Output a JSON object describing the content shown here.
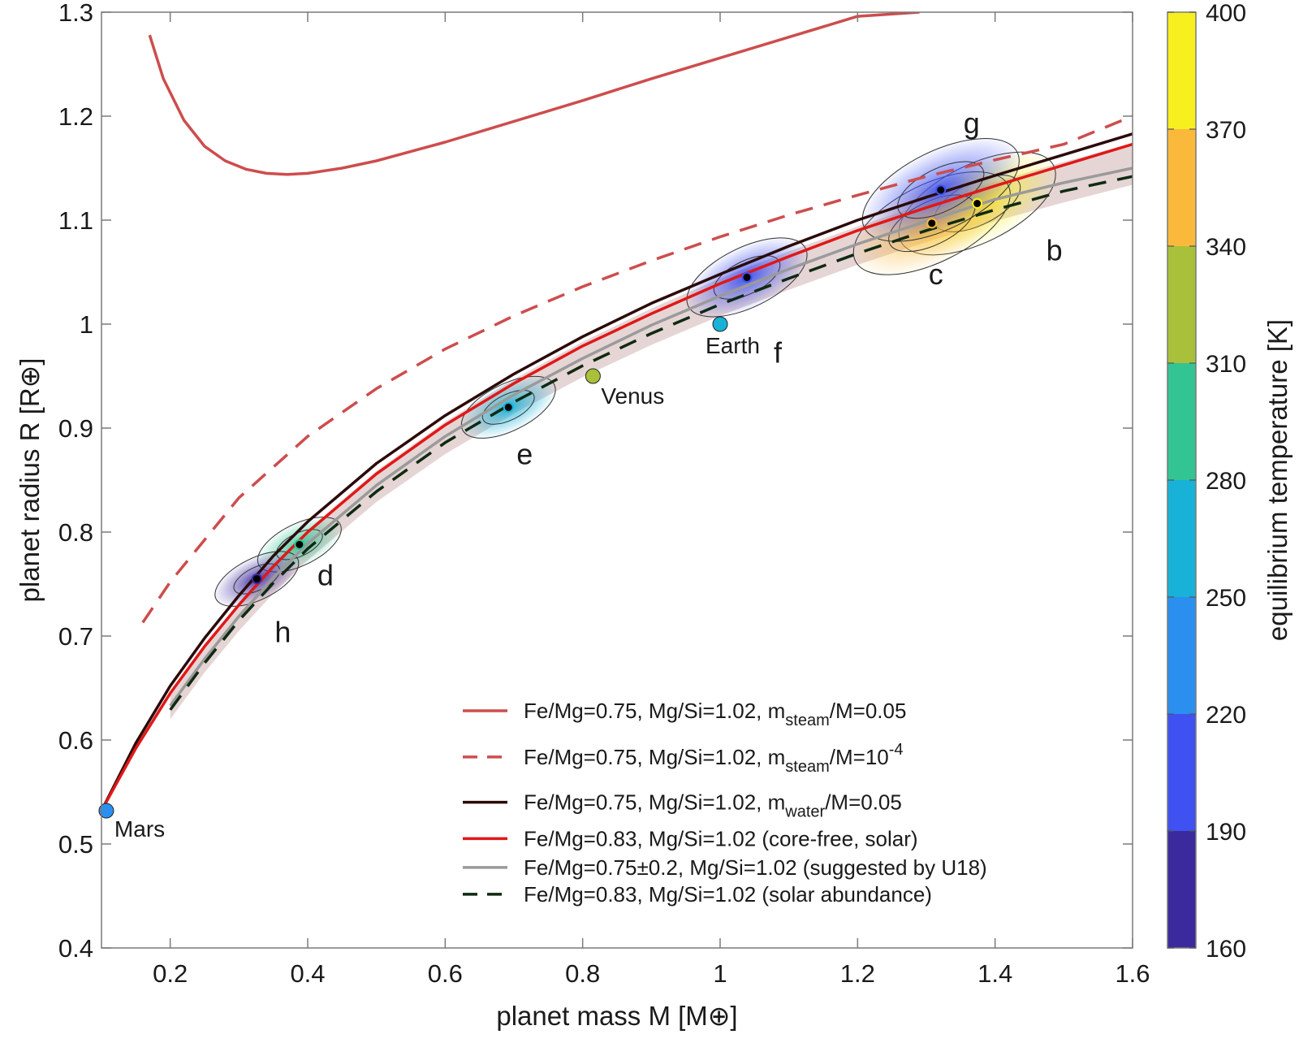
{
  "chart_data": {
    "type": "scatter",
    "xlabel": "planet mass M [M⊕]",
    "ylabel": "planet radius R [R⊕]",
    "xlim": [
      0.1,
      1.6
    ],
    "ylim": [
      0.4,
      1.3
    ],
    "x_ticks": [
      "0.2",
      "0.4",
      "0.6",
      "0.8",
      "1",
      "1.2",
      "1.4",
      "1.6"
    ],
    "y_ticks": [
      "0.4",
      "0.5",
      "0.6",
      "0.7",
      "0.8",
      "0.9",
      "1",
      "1.1",
      "1.2",
      "1.3"
    ],
    "grid": false,
    "legend_position": "bottom-right",
    "colorbar": {
      "label": "equilibrium temperature [K]",
      "ticks": [
        "160",
        "190",
        "220",
        "250",
        "280",
        "310",
        "340",
        "370",
        "400"
      ],
      "colors": [
        "#3b2a9e",
        "#3f51f0",
        "#2b8ff0",
        "#18b2d8",
        "#33c494",
        "#a9c13a",
        "#fbb93c",
        "#f7f01e"
      ]
    },
    "series": [
      {
        "name": "Fe/Mg=0.75, Mg/Si=1.02, m_steam/M=0.05",
        "legend": {
          "main": "Fe/Mg=0.75, Mg/Si=1.02, m",
          "sub": "steam",
          "rest": "/M=0.05"
        },
        "color": "#cd4d4d",
        "style": "solid",
        "x": [
          0.17,
          0.19,
          0.22,
          0.25,
          0.28,
          0.31,
          0.34,
          0.37,
          0.4,
          0.45,
          0.5,
          0.6,
          0.7,
          0.8,
          0.9,
          1.0,
          1.1,
          1.2,
          1.29
        ],
        "y": [
          1.278,
          1.236,
          1.196,
          1.171,
          1.157,
          1.149,
          1.145,
          1.144,
          1.145,
          1.15,
          1.157,
          1.175,
          1.195,
          1.215,
          1.236,
          1.256,
          1.276,
          1.296,
          1.3
        ]
      },
      {
        "name": "Fe/Mg=0.75, Mg/Si=1.02, m_steam/M=10^-4",
        "legend": {
          "main": "Fe/Mg=0.75, Mg/Si=1.02, m",
          "sub": "steam",
          "rest": "/M=10",
          "sup": "-4"
        },
        "color": "#cd4d4d",
        "style": "dashed",
        "x": [
          0.16,
          0.2,
          0.3,
          0.4,
          0.5,
          0.6,
          0.7,
          0.8,
          0.9,
          1.0,
          1.1,
          1.2,
          1.3,
          1.4,
          1.5,
          1.6
        ],
        "y": [
          0.713,
          0.752,
          0.833,
          0.892,
          0.938,
          0.976,
          1.008,
          1.036,
          1.061,
          1.084,
          1.105,
          1.124,
          1.142,
          1.158,
          1.173,
          1.2
        ]
      },
      {
        "name": "Fe/Mg=0.75, Mg/Si=1.02, m_water/M=0.05",
        "legend": {
          "main": "Fe/Mg=0.75, Mg/Si=1.02, m",
          "sub": "water",
          "rest": "/M=0.05"
        },
        "color": "#2b0a0a",
        "style": "solid",
        "x": [
          0.1,
          0.15,
          0.2,
          0.25,
          0.3,
          0.35,
          0.4,
          0.5,
          0.6,
          0.7,
          0.8,
          0.9,
          1.0,
          1.1,
          1.2,
          1.3,
          1.4,
          1.5,
          1.6
        ],
        "y": [
          0.532,
          0.597,
          0.652,
          0.698,
          0.739,
          0.777,
          0.81,
          0.866,
          0.912,
          0.952,
          0.988,
          1.02,
          1.048,
          1.075,
          1.1,
          1.122,
          1.143,
          1.163,
          1.183
        ]
      },
      {
        "name": "Fe/Mg=0.83, Mg/Si=1.02 (core-free, solar)",
        "legend": {
          "main": "Fe/Mg=0.83, Mg/Si=1.02 (core-free, solar)"
        },
        "color": "#e01818",
        "style": "solid",
        "x": [
          0.1,
          0.15,
          0.2,
          0.25,
          0.3,
          0.35,
          0.4,
          0.5,
          0.6,
          0.7,
          0.8,
          0.9,
          1.0,
          1.1,
          1.2,
          1.3,
          1.4,
          1.5,
          1.6
        ],
        "y": [
          0.532,
          0.592,
          0.645,
          0.69,
          0.73,
          0.767,
          0.8,
          0.856,
          0.903,
          0.943,
          0.979,
          1.01,
          1.039,
          1.065,
          1.09,
          1.112,
          1.133,
          1.153,
          1.173
        ]
      },
      {
        "name": "Fe/Mg=0.75±0.2, Mg/Si=1.02 (suggested by U18)",
        "legend": {
          "main": "Fe/Mg=0.75±0.2, Mg/Si=1.02 (suggested by U18)"
        },
        "color": "#9a9a9a",
        "style": "solid",
        "band_color": "#c49a9a",
        "x": [
          0.2,
          0.25,
          0.3,
          0.35,
          0.4,
          0.5,
          0.6,
          0.7,
          0.8,
          0.9,
          1.0,
          1.1,
          1.2,
          1.3,
          1.4,
          1.5,
          1.6
        ],
        "y": [
          0.633,
          0.678,
          0.719,
          0.756,
          0.789,
          0.845,
          0.892,
          0.932,
          0.967,
          0.999,
          1.027,
          1.053,
          1.077,
          1.099,
          1.12,
          1.136,
          1.15
        ],
        "y_low": [
          0.62,
          0.665,
          0.705,
          0.741,
          0.773,
          0.829,
          0.875,
          0.914,
          0.949,
          0.98,
          1.008,
          1.033,
          1.057,
          1.079,
          1.099,
          1.117,
          1.134
        ],
        "y_high": [
          0.645,
          0.691,
          0.732,
          0.769,
          0.802,
          0.859,
          0.906,
          0.947,
          0.983,
          1.015,
          1.044,
          1.07,
          1.094,
          1.116,
          1.137,
          1.156,
          1.174
        ]
      },
      {
        "name": "Fe/Mg=0.83, Mg/Si=1.02 (solar abundance)",
        "legend": {
          "main": "Fe/Mg=0.83, Mg/Si=1.02 (solar abundance)"
        },
        "color": "#0f2a12",
        "style": "dashed",
        "x": [
          0.2,
          0.25,
          0.3,
          0.35,
          0.4,
          0.5,
          0.6,
          0.7,
          0.8,
          0.9,
          1.0,
          1.1,
          1.2,
          1.3,
          1.4,
          1.5,
          1.6
        ],
        "y": [
          0.629,
          0.674,
          0.715,
          0.751,
          0.784,
          0.839,
          0.886,
          0.925,
          0.96,
          0.991,
          1.019,
          1.044,
          1.068,
          1.09,
          1.11,
          1.128,
          1.142
        ]
      }
    ],
    "planets": [
      {
        "label": "b",
        "mass": 1.374,
        "radius": 1.116,
        "teq": 400,
        "color": "#f7f01e"
      },
      {
        "label": "c",
        "mass": 1.308,
        "radius": 1.097,
        "teq": 342,
        "color": "#fbb93c"
      },
      {
        "label": "d",
        "mass": 0.388,
        "radius": 0.788,
        "teq": 288,
        "color": "#33c494"
      },
      {
        "label": "e",
        "mass": 0.692,
        "radius": 0.92,
        "teq": 251,
        "color": "#18b2d8"
      },
      {
        "label": "f",
        "mass": 1.039,
        "radius": 1.045,
        "teq": 219,
        "color": "#3f51f0"
      },
      {
        "label": "g",
        "mass": 1.321,
        "radius": 1.129,
        "teq": 199,
        "color": "#3f51f0"
      },
      {
        "label": "h",
        "mass": 0.326,
        "radius": 0.755,
        "teq": 173,
        "color": "#3b2a9e"
      }
    ],
    "solar_system": [
      {
        "label": "Earth",
        "mass": 1.0,
        "radius": 1.0,
        "color": "#18b2d8"
      },
      {
        "label": "Venus",
        "mass": 0.815,
        "radius": 0.95,
        "color": "#a9c13a"
      },
      {
        "label": "Mars",
        "mass": 0.107,
        "radius": 0.532,
        "color": "#2b8ff0"
      }
    ]
  }
}
